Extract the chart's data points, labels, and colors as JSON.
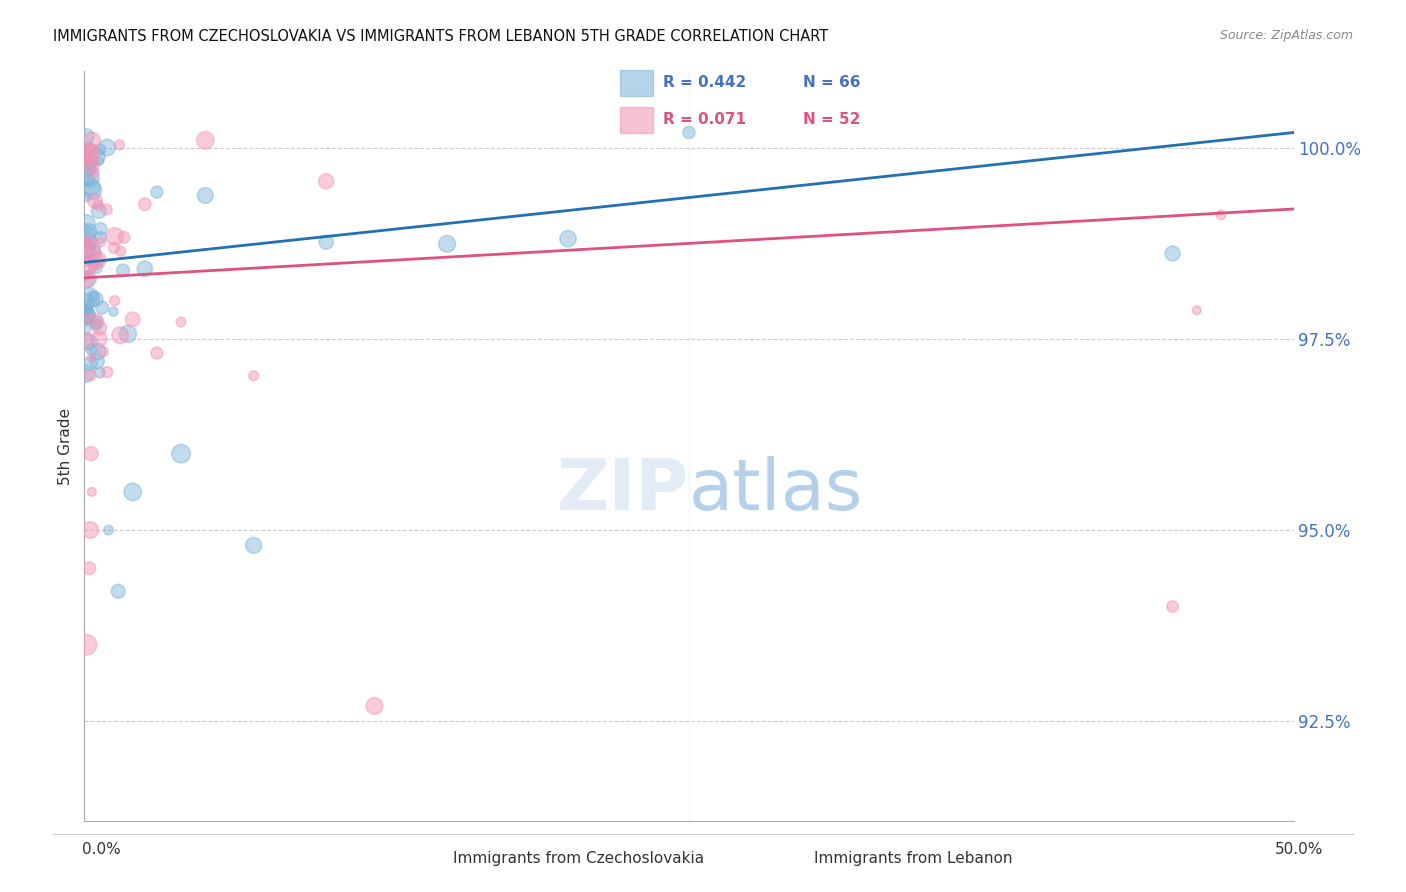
{
  "title": "IMMIGRANTS FROM CZECHOSLOVAKIA VS IMMIGRANTS FROM LEBANON 5TH GRADE CORRELATION CHART",
  "source": "Source: ZipAtlas.com",
  "ylabel": "5th Grade",
  "blue_R": 0.442,
  "blue_N": 66,
  "pink_R": 0.071,
  "pink_N": 52,
  "blue_color": "#7ab3d9",
  "pink_color": "#f48fb1",
  "blue_line_color": "#2271b3",
  "pink_line_color": "#e05080",
  "legend_label_blue": "Immigrants from Czechoslovakia",
  "legend_label_pink": "Immigrants from Lebanon",
  "ymin": 91.2,
  "ymax": 101.0,
  "xmin": 0.0,
  "xmax": 50.0,
  "yticks": [
    92.5,
    95.0,
    97.5,
    100.0
  ],
  "ytick_labels": [
    "92.5%",
    "95.0%",
    "97.5%",
    "100.0%"
  ],
  "blue_line_x0": 0.0,
  "blue_line_x1": 50.0,
  "blue_line_y0": 98.5,
  "blue_line_y1": 100.2,
  "pink_line_x0": 0.0,
  "pink_line_x1": 50.0,
  "pink_line_y0": 98.3,
  "pink_line_y1": 99.2
}
